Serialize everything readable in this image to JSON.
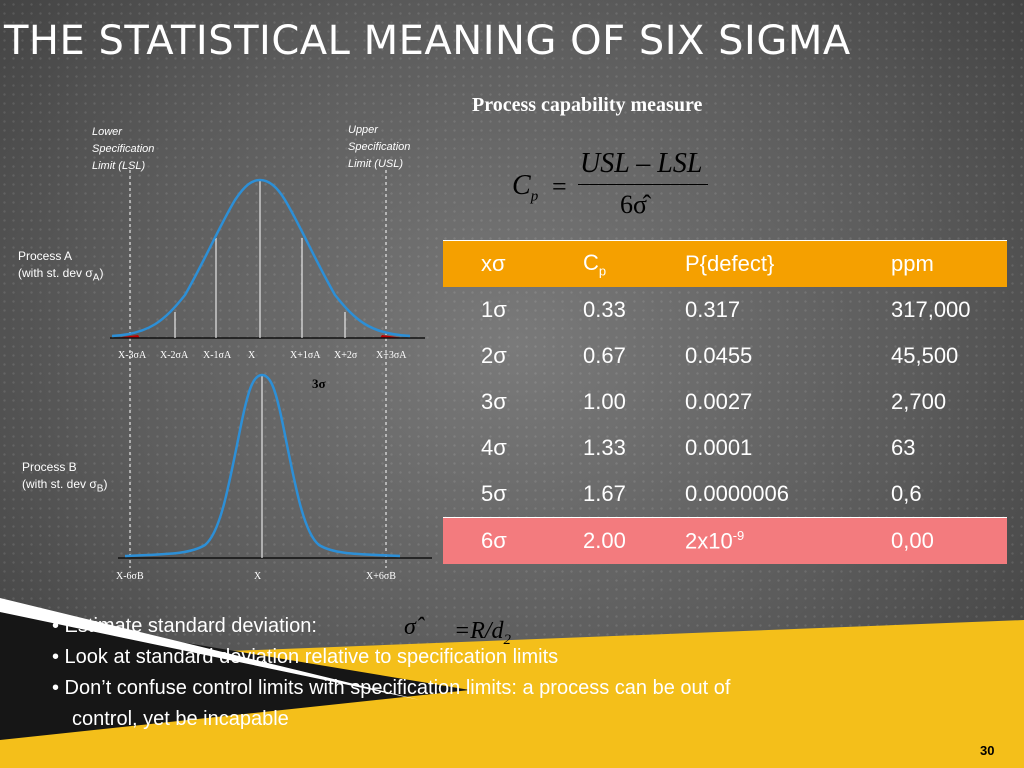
{
  "slide": {
    "title": "THE STATISTICAL MEANING OF SIX SIGMA",
    "subtitle": "Process capability measure",
    "page_number": "30"
  },
  "formula_cp": {
    "lhs": "C",
    "lhs_sub": "p",
    "eq": "=",
    "numerator": "USL – LSL",
    "denominator": "6σ̂"
  },
  "diagram": {
    "lsl_note": [
      "Lower",
      "Specification",
      "Limit (LSL)"
    ],
    "usl_note": [
      "Upper",
      "Specification",
      "Limit (USL)"
    ],
    "process_a": {
      "name": "Process A",
      "stdev_prefix": "(with st. dev σ",
      "stdev_sub": "A",
      "stdev_suffix": ")"
    },
    "process_b": {
      "name": "Process B",
      "stdev_prefix": "(with st. dev σ",
      "stdev_sub": "B",
      "stdev_suffix": ")"
    },
    "axis_a": [
      "X-3σA",
      "X-2σA",
      "X-1σA",
      "X",
      "X+1σA",
      "X+2σ",
      "X+3σA"
    ],
    "axis_b": [
      "X-6σB",
      "X",
      "X+6σB"
    ],
    "three_sigma": "3σ",
    "colors": {
      "curve": "#2d8fd6",
      "tail": "#c00000",
      "axis": "#111111",
      "limit_line": "#ffffff"
    }
  },
  "table": {
    "header": [
      "xσ",
      "C",
      "P{defect}",
      "ppm"
    ],
    "header_sub": "p",
    "rows": [
      [
        "1σ",
        "0.33",
        "0.317",
        "317,000"
      ],
      [
        "2σ",
        "0.67",
        "0.0455",
        "45,500"
      ],
      [
        "3σ",
        "1.00",
        "0.0027",
        "2,700"
      ],
      [
        "4σ",
        "1.33",
        "0.0001",
        "63"
      ],
      [
        "5σ",
        "1.67",
        "0.0000006",
        "0,6"
      ]
    ],
    "highlight_row": {
      "xs": "6σ",
      "cp": "2.00",
      "p_base": "2x10",
      "p_exp": "-9",
      "ppm": "0,00"
    },
    "colors": {
      "header": "#f5a000",
      "highlight": "#f37b7e"
    }
  },
  "bullets": {
    "b1": "• Estimate standard deviation:",
    "b2": "• Look at standard deviation relative to specification limits",
    "b3": "• Don’t confuse control limits with specification limits: a process can be out of",
    "b3_cont": "control, yet be incapable"
  },
  "formula_sigma": {
    "lhs": "σ̂",
    "rhs": "=R/d",
    "rhs_sub": "2"
  },
  "theme": {
    "accent_yellow": "#f4bf1a",
    "stripe_dark": "#111111"
  }
}
